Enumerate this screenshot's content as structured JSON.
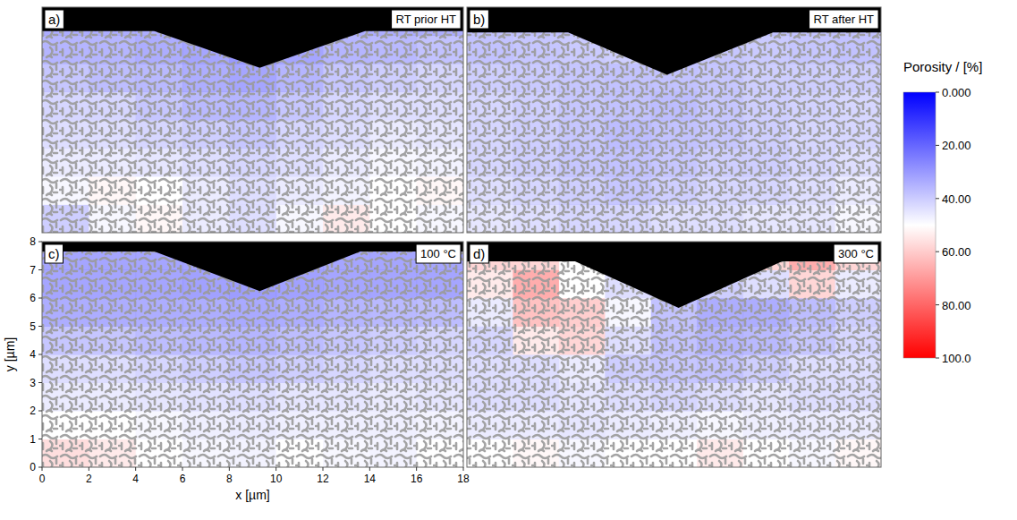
{
  "chart_data": [
    {
      "type": "heatmap",
      "panel_label": "a)",
      "title": "RT prior HT",
      "xlim": [
        0,
        18
      ],
      "ylim": [
        0,
        8
      ],
      "tick_labels": false,
      "indent": {
        "x": [
          0,
          4.8,
          9.3,
          13.8,
          18
        ],
        "y": [
          7.15,
          7.15,
          5.85,
          7.15,
          7.15
        ]
      },
      "values": [
        [
          38,
          48,
          52,
          45,
          42,
          48,
          55,
          50,
          48
        ],
        [
          48,
          52,
          50,
          45,
          42,
          45,
          47,
          50,
          52
        ],
        [
          45,
          45,
          44,
          42,
          40,
          42,
          45,
          48,
          47
        ],
        [
          42,
          42,
          40,
          38,
          36,
          40,
          42,
          45,
          44
        ],
        [
          40,
          40,
          36,
          33,
          32,
          36,
          40,
          42,
          42
        ],
        [
          36,
          34,
          33,
          30,
          28,
          32,
          36,
          38,
          40
        ],
        [
          32,
          32,
          30,
          28,
          25,
          28,
          32,
          33,
          35
        ],
        [
          30,
          30,
          30,
          30,
          30,
          30,
          30,
          30,
          30
        ]
      ]
    },
    {
      "type": "heatmap",
      "panel_label": "b)",
      "title": "RT after HT",
      "xlim": [
        0,
        18
      ],
      "ylim": [
        0,
        8
      ],
      "tick_labels": false,
      "indent": {
        "x": [
          0,
          4.4,
          8.7,
          13.3,
          18
        ],
        "y": [
          7.1,
          7.1,
          5.6,
          7.1,
          7.1
        ]
      },
      "values": [
        [
          44,
          42,
          40,
          40,
          42,
          42,
          44,
          44,
          48
        ],
        [
          42,
          40,
          38,
          36,
          38,
          40,
          40,
          42,
          45
        ],
        [
          40,
          38,
          36,
          35,
          36,
          38,
          38,
          40,
          42
        ],
        [
          40,
          38,
          36,
          34,
          35,
          36,
          38,
          40,
          40
        ],
        [
          40,
          38,
          36,
          35,
          34,
          36,
          38,
          39,
          40
        ],
        [
          38,
          37,
          36,
          35,
          35,
          36,
          38,
          38,
          38
        ],
        [
          35,
          36,
          37,
          38,
          36,
          36,
          37,
          36,
          35
        ],
        [
          35,
          35,
          35,
          35,
          35,
          35,
          35,
          35,
          35
        ]
      ]
    },
    {
      "type": "heatmap",
      "panel_label": "c)",
      "title": "100 °C",
      "xlim": [
        0,
        18
      ],
      "ylim": [
        0,
        8
      ],
      "xticks": [
        0,
        2,
        4,
        6,
        8,
        10,
        12,
        14,
        16,
        18
      ],
      "yticks": [
        0,
        1,
        2,
        3,
        4,
        5,
        6,
        7,
        8
      ],
      "x_label": "x [µm]",
      "y_label": "y [µm]",
      "indent": {
        "x": [
          0,
          4.8,
          9.3,
          13.6,
          18
        ],
        "y": [
          7.65,
          7.65,
          6.25,
          7.65,
          7.65
        ]
      },
      "values": [
        [
          58,
          55,
          50,
          48,
          47,
          50,
          48,
          47,
          50
        ],
        [
          50,
          50,
          48,
          46,
          45,
          46,
          46,
          46,
          47
        ],
        [
          45,
          45,
          44,
          43,
          42,
          44,
          44,
          45,
          44
        ],
        [
          42,
          42,
          40,
          38,
          36,
          38,
          40,
          42,
          42
        ],
        [
          36,
          36,
          34,
          33,
          32,
          34,
          36,
          38,
          40
        ],
        [
          30,
          30,
          30,
          30,
          29,
          30,
          32,
          33,
          34
        ],
        [
          28,
          28,
          28,
          27,
          26,
          27,
          28,
          28,
          28
        ],
        [
          28,
          28,
          28,
          28,
          28,
          28,
          28,
          28,
          28
        ]
      ]
    },
    {
      "type": "heatmap",
      "panel_label": "d)",
      "title": "300 °C",
      "xlim": [
        0,
        18
      ],
      "ylim": [
        0,
        8
      ],
      "tick_labels": false,
      "indent": {
        "x": [
          0,
          4.7,
          9.2,
          13.7,
          18
        ],
        "y": [
          7.3,
          7.3,
          5.65,
          7.3,
          7.3
        ]
      },
      "values": [
        [
          50,
          52,
          48,
          50,
          50,
          55,
          50,
          48,
          52
        ],
        [
          45,
          45,
          44,
          45,
          46,
          48,
          46,
          45,
          45
        ],
        [
          42,
          42,
          44,
          42,
          40,
          42,
          44,
          42,
          42
        ],
        [
          42,
          42,
          45,
          38,
          36,
          35,
          38,
          42,
          42
        ],
        [
          40,
          55,
          60,
          42,
          35,
          32,
          33,
          36,
          40
        ],
        [
          45,
          65,
          62,
          48,
          35,
          30,
          30,
          34,
          38
        ],
        [
          55,
          70,
          50,
          42,
          40,
          38,
          42,
          60,
          45
        ],
        [
          60,
          60,
          50,
          50,
          50,
          50,
          60,
          70,
          60
        ]
      ]
    }
  ],
  "colorbar": {
    "title": "Porosity / [%]",
    "range": [
      0,
      100
    ],
    "colors": [
      "#0000ff",
      "#ffffff",
      "#ff0000"
    ],
    "ticks": [
      {
        "value": 0,
        "label": "0.000"
      },
      {
        "value": 20,
        "label": "20.00"
      },
      {
        "value": 40,
        "label": "40.00"
      },
      {
        "value": 60,
        "label": "60.00"
      },
      {
        "value": 80,
        "label": "80.00"
      },
      {
        "value": 100,
        "label": "100.0"
      }
    ]
  }
}
